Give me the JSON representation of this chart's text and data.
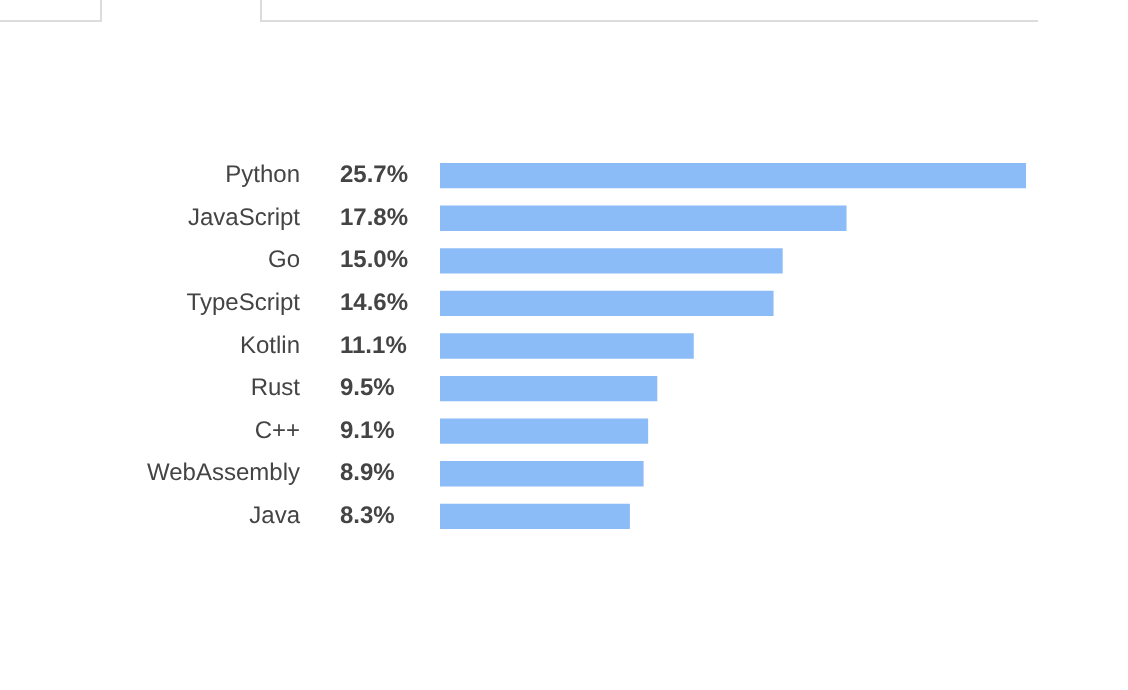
{
  "chart_data": {
    "type": "bar",
    "orientation": "horizontal",
    "categories": [
      "Python",
      "JavaScript",
      "Go",
      "TypeScript",
      "Kotlin",
      "Rust",
      "C++",
      "WebAssembly",
      "Java"
    ],
    "values": [
      25.7,
      17.8,
      15.0,
      14.6,
      11.1,
      9.5,
      9.1,
      8.9,
      8.3
    ],
    "value_labels": [
      "25.7%",
      "17.8%",
      "15.0%",
      "14.6%",
      "11.1%",
      "9.5%",
      "9.1%",
      "8.9%",
      "8.3%"
    ],
    "color": "#8bbcf7"
  }
}
